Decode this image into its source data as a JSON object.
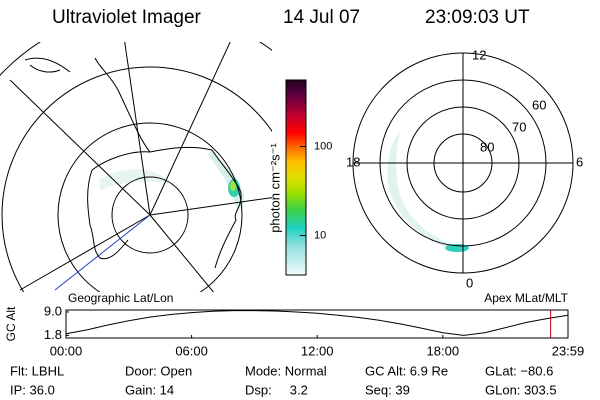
{
  "header": {
    "title": "Ultraviolet Imager",
    "date": "14 Jul 07",
    "time": "23:09:03 UT"
  },
  "left_panel": {
    "title": "Geographic Lat/Lon"
  },
  "right_panel": {
    "title": "Apex MLat/MLT",
    "mlt_labels": [
      "12",
      "18",
      "6",
      "0"
    ],
    "lat_labels": [
      "60",
      "70",
      "80"
    ]
  },
  "colorbar": {
    "label": "photon cm⁻²s⁻¹",
    "log": true,
    "lim": [
      3.6,
      560
    ],
    "ticks": [
      10,
      100
    ]
  },
  "chart_data": {
    "type": "line",
    "ylabel": "GC Alt",
    "color": "#000000",
    "x": [
      0,
      1,
      2,
      3,
      4,
      5,
      6,
      7,
      8,
      9,
      10,
      11,
      12,
      13,
      14,
      15,
      16,
      17,
      18,
      19,
      20,
      21,
      22,
      23,
      23.98
    ],
    "values": [
      2.3,
      3.5,
      5.0,
      6.3,
      7.4,
      8.2,
      8.8,
      9.2,
      9.4,
      9.4,
      9.3,
      9.0,
      8.6,
      8.0,
      7.3,
      6.4,
      5.3,
      4.0,
      2.6,
      1.8,
      2.6,
      4.2,
      5.8,
      7.0,
      8.0
    ],
    "xlim": [
      0,
      23.98
    ],
    "ylim": [
      1.0,
      9.6
    ],
    "xticks": [
      {
        "value": 0,
        "label": "00:00"
      },
      {
        "value": 6,
        "label": "06:00"
      },
      {
        "value": 12,
        "label": "12:00"
      },
      {
        "value": 18,
        "label": "18:00"
      },
      {
        "value": 23.98,
        "label": "23:59"
      }
    ],
    "yticks": [
      {
        "value": 9.0,
        "label": "9.0"
      },
      {
        "value": 1.8,
        "label": "1.8"
      }
    ],
    "marker": {
      "x": 23.15,
      "color": "#cc0000"
    }
  },
  "footer": {
    "rows": [
      [
        "Flt: LBHL",
        "Door: Open",
        "Mode: Normal",
        "GC Alt: 6.9 Re",
        "GLat: −80.6"
      ],
      [
        "IP: 36.0",
        "Gain: 14",
        "Dsp:     3.2",
        "Seq: 39",
        "GLon: 303.5"
      ]
    ]
  }
}
